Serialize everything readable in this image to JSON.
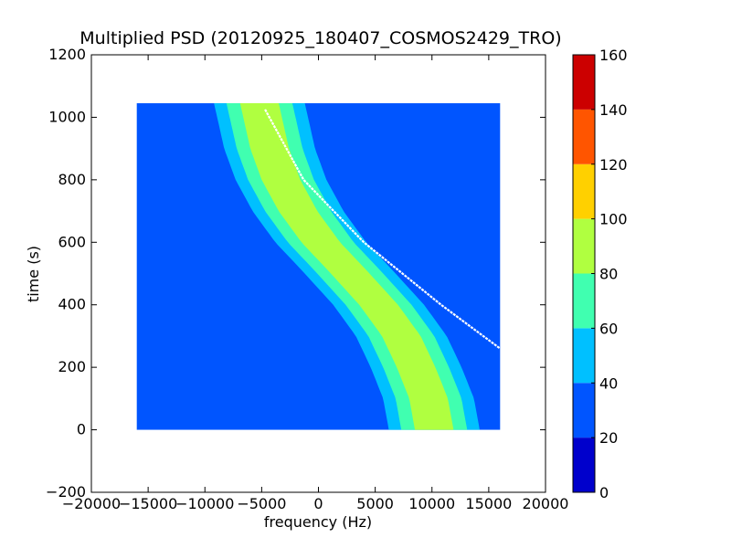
{
  "chart_data": {
    "type": "heatmap",
    "title": "Multiplied PSD (20120925_180407_COSMOS2429_TRO)",
    "xlabel": "frequency (Hz)",
    "ylabel": "time (s)",
    "xlim": [
      -20000,
      20000
    ],
    "ylim": [
      -200,
      1200
    ],
    "x_ticks": [
      -20000,
      -15000,
      -10000,
      -5000,
      0,
      5000,
      10000,
      15000,
      20000
    ],
    "y_ticks": [
      -200,
      0,
      200,
      400,
      600,
      800,
      1000,
      1200
    ],
    "x_tick_labels": [
      "−20000",
      "−15000",
      "−10000",
      "−5000",
      "0",
      "5000",
      "10000",
      "15000",
      "20000"
    ],
    "y_tick_labels": [
      "−200",
      "0",
      "200",
      "400",
      "600",
      "800",
      "1000",
      "1200"
    ],
    "data_extent": {
      "x": [
        -16000,
        16000
      ],
      "y": [
        0,
        1045
      ]
    },
    "background_level": 30,
    "main_band": {
      "center_freq_at_time": [
        [
          1045,
          -5200
        ],
        [
          900,
          -4300
        ],
        [
          800,
          -3300
        ],
        [
          700,
          -1800
        ],
        [
          600,
          200
        ],
        [
          500,
          2800
        ],
        [
          400,
          5300
        ],
        [
          300,
          7300
        ],
        [
          200,
          8600
        ],
        [
          100,
          9700
        ],
        [
          0,
          10200
        ]
      ],
      "half_width_hz": {
        "level_40": 4000,
        "level_60": 2900,
        "level_80": 1700
      },
      "peak_level": 90
    },
    "white_trace": [
      [
        1025,
        -4700
      ],
      [
        800,
        -1300
      ],
      [
        600,
        4000
      ],
      [
        400,
        10800
      ],
      [
        260,
        16000
      ]
    ],
    "colorbar": {
      "levels": [
        0,
        20,
        40,
        60,
        80,
        100,
        120,
        140,
        160
      ],
      "labels": [
        "0",
        "20",
        "40",
        "60",
        "80",
        "100",
        "120",
        "140",
        "160"
      ],
      "colors": [
        "#0000cc",
        "#0055ff",
        "#00c0ff",
        "#40ffb0",
        "#b0ff40",
        "#ffd000",
        "#ff5500",
        "#cc0000"
      ]
    },
    "grid": false
  }
}
